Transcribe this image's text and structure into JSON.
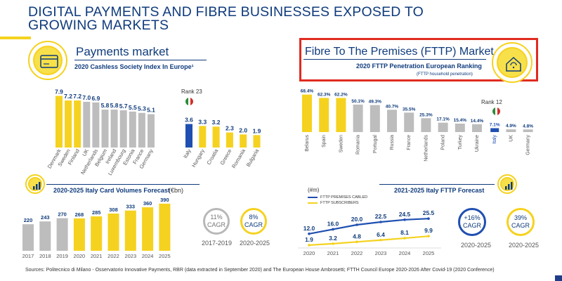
{
  "page": {
    "title_line1": "DIGITAL PAYMENTS AND FIBRE BUSINESSES EXPOSED TO",
    "title_line2": "GROWING MARKETS",
    "footer": "Sources: Politecnico di Milano - Osservatorio Innovative Payments, RBR (data extracted in September 2020) and The European House Ambrosetti; FTTH Council Europe 2020-2026 After Covid-19 (2020 Conference)"
  },
  "payments": {
    "title": "Payments market",
    "subtitle": "2020 Cashless Society Index In Europe¹",
    "rank": "Rank 23",
    "forecast_title": "2020-2025 Italy Card Volumes Forecast",
    "forecast_unit": "(€bn)",
    "cagr1": {
      "value": "11%",
      "label": "CAGR",
      "period": "2017-2019"
    },
    "cagr2": {
      "value": "8%",
      "label": "CAGR",
      "period": "2020-2025"
    }
  },
  "fttp": {
    "title": "Fibre To The Premises (FTTP) Market",
    "subtitle": "2020 FTTP Penetration European Ranking",
    "note": "(FTTP household penetration)",
    "rank": "Rank 12",
    "forecast_title": "2021-2025 Italy FTTP Forecast",
    "forecast_unit": "(#m)",
    "legend_cabled": "FTTP PREMISES CABLED",
    "legend_subs": "FTTP SUBSCRIBERS",
    "cagr1": {
      "value": "+16%",
      "label": "CAGR",
      "period": "2020-2025"
    },
    "cagr2": {
      "value": "39%",
      "label": "CAGR",
      "period": "2020-2025"
    }
  },
  "colors": {
    "yellow": "#f5d21f",
    "grey": "#bdbdbd",
    "blue": "#1f4fb0",
    "navy": "#0f3b7c",
    "red": "#e02b20"
  },
  "chart_data": [
    {
      "type": "bar",
      "title": "2020 Cashless Society Index In Europe¹",
      "categories": [
        "Denmark",
        "Sweden",
        "Finland",
        "UK",
        "Netherlands",
        "Belgium",
        "Ireland",
        "Luxembourg",
        "Estonia",
        "France",
        "Germany"
      ],
      "values": [
        7.9,
        7.2,
        7.2,
        7.0,
        6.9,
        5.8,
        5.8,
        5.7,
        5.5,
        5.3,
        5.1
      ],
      "value_labels": [
        "7.9",
        "7.2",
        "7.2",
        "7.0",
        "6.9",
        "5.8",
        "5.8",
        "5.7",
        "5.5",
        "5.3",
        "5.1"
      ],
      "colors": [
        "yellow",
        "yellow",
        "yellow",
        "grey",
        "grey",
        "grey",
        "grey",
        "grey",
        "grey",
        "grey",
        "grey"
      ]
    },
    {
      "type": "bar",
      "title": "2020 Cashless Society Index In Europe¹",
      "categories": [
        "Italy",
        "Hungary",
        "Croatia",
        "Greece",
        "Romania",
        "Bulgaria"
      ],
      "values": [
        3.6,
        3.3,
        3.2,
        2.3,
        2.0,
        1.9
      ],
      "value_labels": [
        "3.6",
        "3.3",
        "3.2",
        "2.3",
        "2.0",
        "1.9"
      ],
      "colors": [
        "blue",
        "yellow",
        "yellow",
        "yellow",
        "yellow",
        "yellow"
      ]
    },
    {
      "type": "bar",
      "title": "2020-2025 Italy Card Volumes Forecast",
      "categories": [
        "2017",
        "2018",
        "2019",
        "2020",
        "2021",
        "2022",
        "2023",
        "2024",
        "2025"
      ],
      "values": [
        220,
        243,
        270,
        268,
        285,
        308,
        333,
        360,
        390
      ],
      "colors": [
        "grey",
        "grey",
        "grey",
        "yellow",
        "yellow",
        "yellow",
        "yellow",
        "yellow",
        "yellow"
      ]
    },
    {
      "type": "bar",
      "title": "2020 FTTP Penetration European Ranking",
      "categories": [
        "Belarus",
        "Spain",
        "Sweden",
        "Romania",
        "Portugal",
        "Russia",
        "France",
        "Netherlands",
        "Poland",
        "Turkey",
        "Ukraine",
        "Italy",
        "UK",
        "Germany"
      ],
      "values": [
        68.4,
        62.3,
        62.2,
        50.1,
        49.3,
        40.7,
        35.5,
        25.3,
        17.1,
        15.4,
        14.4,
        7.1,
        4.9,
        4.8
      ],
      "value_labels": [
        "68.4%",
        "62.3%",
        "62.2%",
        "50.1%",
        "49.3%",
        "40.7%",
        "35.5%",
        "25.3%",
        "17.1%",
        "15.4%",
        "14.4%",
        "7.1%",
        "4.9%",
        "4.8%"
      ],
      "colors": [
        "yellow",
        "yellow",
        "yellow",
        "grey",
        "grey",
        "grey",
        "grey",
        "grey",
        "grey",
        "grey",
        "grey",
        "blue",
        "grey",
        "grey"
      ]
    },
    {
      "type": "line",
      "title": "2021-2025 Italy FTTP Forecast",
      "x": [
        "2020",
        "2021",
        "2022",
        "2023",
        "2024",
        "2025"
      ],
      "series": [
        {
          "name": "FTTP PREMISES CABLED",
          "values": [
            12.0,
            16.0,
            20.0,
            22.5,
            24.5,
            25.5
          ],
          "labels": [
            "12.0",
            "16.0",
            "20.0",
            "22.5",
            "24.5",
            "25.5"
          ],
          "color": "blue"
        },
        {
          "name": "FTTP SUBSCRIBERS",
          "values": [
            1.9,
            3.2,
            4.8,
            6.4,
            8.1,
            9.9
          ],
          "labels": [
            "1.9",
            "3.2",
            "4.8",
            "6.4",
            "8.1",
            "9.9"
          ],
          "color": "yellow"
        }
      ]
    }
  ]
}
